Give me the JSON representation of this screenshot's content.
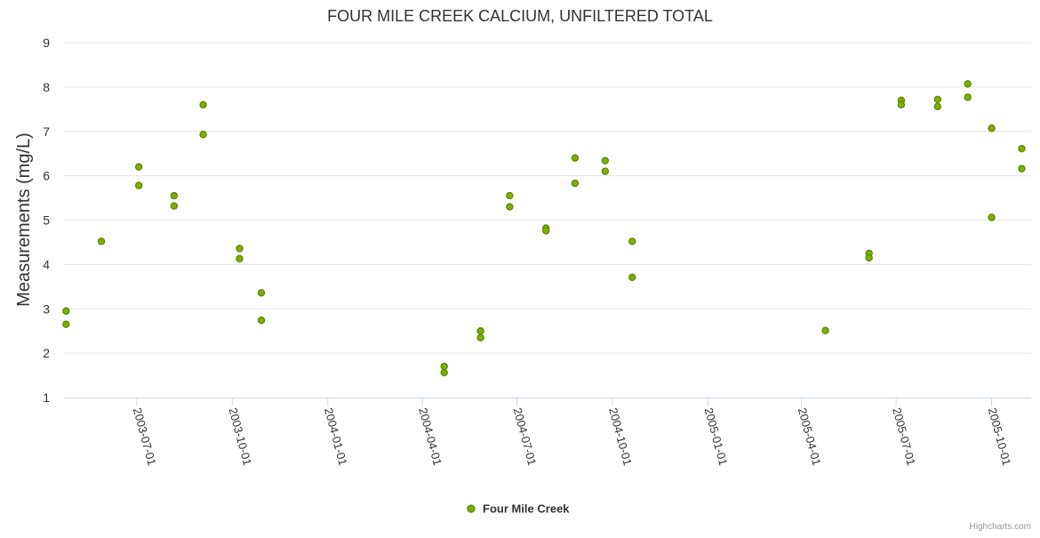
{
  "chart_data": {
    "type": "scatter",
    "title": "FOUR MILE CREEK CALCIUM, UNFILTERED TOTAL",
    "ylabel": "Measurements (mg/L)",
    "xlabel": "",
    "ylim": [
      1,
      9
    ],
    "xlim": [
      "2003-04-22",
      "2005-11-08"
    ],
    "yticks": [
      1,
      2,
      3,
      4,
      5,
      6,
      7,
      8,
      9
    ],
    "xticks": [
      "2003-07-01",
      "2003-10-01",
      "2004-01-01",
      "2004-04-01",
      "2004-07-01",
      "2004-10-01",
      "2005-01-01",
      "2005-04-01",
      "2005-07-01",
      "2005-10-01"
    ],
    "grid": true,
    "legend_position": "bottom-center",
    "series": [
      {
        "name": "Four Mile Creek",
        "color": "#7cb000",
        "points": [
          {
            "x": "2003-04-24",
            "y": 2.95
          },
          {
            "x": "2003-04-24",
            "y": 2.65
          },
          {
            "x": "2003-05-28",
            "y": 4.52
          },
          {
            "x": "2003-07-03",
            "y": 6.2
          },
          {
            "x": "2003-07-03",
            "y": 5.78
          },
          {
            "x": "2003-08-06",
            "y": 5.55
          },
          {
            "x": "2003-08-06",
            "y": 5.32
          },
          {
            "x": "2003-09-03",
            "y": 7.6
          },
          {
            "x": "2003-09-03",
            "y": 6.93
          },
          {
            "x": "2003-10-08",
            "y": 4.36
          },
          {
            "x": "2003-10-08",
            "y": 4.13
          },
          {
            "x": "2003-10-29",
            "y": 3.36
          },
          {
            "x": "2003-10-29",
            "y": 2.74
          },
          {
            "x": "2004-04-22",
            "y": 1.7
          },
          {
            "x": "2004-04-22",
            "y": 1.56
          },
          {
            "x": "2004-05-27",
            "y": 2.5
          },
          {
            "x": "2004-05-27",
            "y": 2.35
          },
          {
            "x": "2004-06-24",
            "y": 5.55
          },
          {
            "x": "2004-06-24",
            "y": 5.3
          },
          {
            "x": "2004-07-29",
            "y": 4.82
          },
          {
            "x": "2004-07-29",
            "y": 4.76
          },
          {
            "x": "2004-08-26",
            "y": 6.4
          },
          {
            "x": "2004-08-26",
            "y": 5.83
          },
          {
            "x": "2004-09-24",
            "y": 6.34
          },
          {
            "x": "2004-09-24",
            "y": 6.1
          },
          {
            "x": "2004-10-20",
            "y": 4.52
          },
          {
            "x": "2004-10-20",
            "y": 3.71
          },
          {
            "x": "2005-04-24",
            "y": 2.51
          },
          {
            "x": "2005-06-05",
            "y": 4.25
          },
          {
            "x": "2005-06-05",
            "y": 4.15
          },
          {
            "x": "2005-07-06",
            "y": 7.7
          },
          {
            "x": "2005-07-06",
            "y": 7.6
          },
          {
            "x": "2005-08-10",
            "y": 7.72
          },
          {
            "x": "2005-08-10",
            "y": 7.56
          },
          {
            "x": "2005-09-08",
            "y": 8.07
          },
          {
            "x": "2005-09-08",
            "y": 7.77
          },
          {
            "x": "2005-10-01",
            "y": 7.07
          },
          {
            "x": "2005-10-01",
            "y": 5.06
          },
          {
            "x": "2005-10-30",
            "y": 6.61
          },
          {
            "x": "2005-10-30",
            "y": 6.16
          }
        ]
      }
    ]
  },
  "credits": "Highcharts.com"
}
